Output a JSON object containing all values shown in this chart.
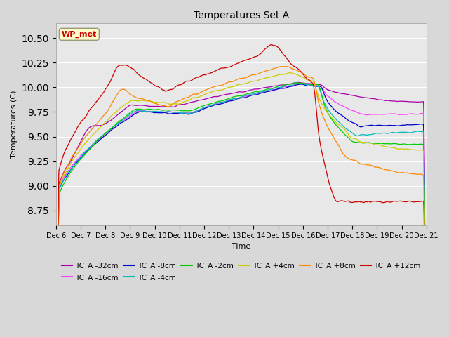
{
  "title": "Temperatures Set A",
  "xlabel": "Time",
  "ylabel": "Temperatures (C)",
  "ylim": [
    8.6,
    10.65
  ],
  "bg_color": "#d8d8d8",
  "plot_bg": "#e8e8e8",
  "x_tick_labels": [
    "Dec 6",
    "Dec 7",
    "Dec 8",
    "Dec 9",
    "Dec 10",
    "Dec 11",
    "Dec 12",
    "Dec 13",
    "Dec 14",
    "Dec 15",
    "Dec 16",
    "Dec 17",
    "Dec 18",
    "Dec 19",
    "Dec 20",
    "Dec 21"
  ],
  "series": [
    {
      "label": "TC_A -32cm",
      "color": "#aa00aa"
    },
    {
      "label": "TC_A -16cm",
      "color": "#ff44ff"
    },
    {
      "label": "TC_A -8cm",
      "color": "#0000cc"
    },
    {
      "label": "TC_A -4cm",
      "color": "#00bbbb"
    },
    {
      "label": "TC_A -2cm",
      "color": "#00cc00"
    },
    {
      "label": "TC_A +4cm",
      "color": "#cccc00"
    },
    {
      "label": "TC_A +8cm",
      "color": "#ff8800"
    },
    {
      "label": "TC_A +12cm",
      "color": "#cc0000"
    }
  ],
  "annotation_label": "WP_met",
  "annotation_color": "#cc0000",
  "annotation_bg": "#ffffcc"
}
